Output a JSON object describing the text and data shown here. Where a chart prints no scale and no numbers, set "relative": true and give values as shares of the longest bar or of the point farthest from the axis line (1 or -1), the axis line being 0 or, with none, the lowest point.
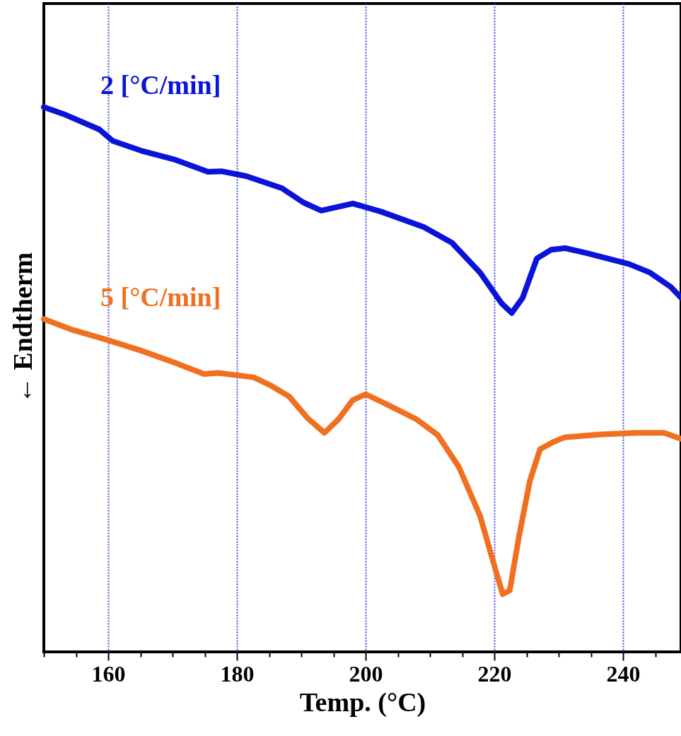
{
  "chart_data": {
    "type": "line",
    "relative": true,
    "xlabel": "Temp. (°C)",
    "ylabel": "← Endtherm",
    "xlim": [
      150,
      249
    ],
    "xticks": [
      {
        "value": 150,
        "label": null
      },
      {
        "value": 155,
        "label": null
      },
      160,
      {
        "value": 165,
        "label": null
      },
      {
        "value": 170,
        "label": null
      },
      {
        "value": 175,
        "label": null
      },
      180,
      {
        "value": 185,
        "label": null
      },
      {
        "value": 190,
        "label": null
      },
      {
        "value": 195,
        "label": null
      },
      200,
      {
        "value": 205,
        "label": null
      },
      {
        "value": 210,
        "label": null
      },
      {
        "value": 215,
        "label": null
      },
      220,
      {
        "value": 225,
        "label": null
      },
      {
        "value": 230,
        "label": null
      },
      {
        "value": 235,
        "label": null
      },
      240,
      {
        "value": 245,
        "label": null
      }
    ],
    "grid": "x",
    "line_style": "solid",
    "series": [
      {
        "name": "2 [°C/min]",
        "color": "#0a14d8",
        "x": [
          150,
          153.1,
          158.6,
          160.7,
          165.1,
          170.5,
          175.5,
          177.7,
          181.5,
          187,
          190.3,
          193.1,
          198,
          202.4,
          209,
          213.4,
          217.8,
          221.1,
          222.7,
          224.4,
          226.6,
          228.8,
          231,
          234.3,
          237.6,
          240.9,
          244.2,
          247.4,
          249
        ],
        "values": [
          1.0,
          0.987,
          0.959,
          0.938,
          0.92,
          0.903,
          0.881,
          0.882,
          0.873,
          0.851,
          0.825,
          0.81,
          0.823,
          0.808,
          0.78,
          0.751,
          0.696,
          0.64,
          0.622,
          0.65,
          0.722,
          0.738,
          0.741,
          0.732,
          0.722,
          0.712,
          0.696,
          0.67,
          0.65
        ]
      },
      {
        "name": "5 [°C/min]",
        "color": "#f07020",
        "x": [
          150,
          154.2,
          159.7,
          165.1,
          170.5,
          174.9,
          177.1,
          182.6,
          185.4,
          188.1,
          190.9,
          193.6,
          195.8,
          198,
          200,
          203.5,
          207.9,
          211.2,
          214.5,
          217.8,
          220,
          221.3,
          222.4,
          223.8,
          225.5,
          227.1,
          229.3,
          231,
          236.5,
          242,
          246.4,
          249
        ],
        "values": [
          0.611,
          0.592,
          0.573,
          0.553,
          0.53,
          0.51,
          0.512,
          0.504,
          0.488,
          0.469,
          0.43,
          0.402,
          0.427,
          0.462,
          0.473,
          0.453,
          0.427,
          0.398,
          0.339,
          0.249,
          0.158,
          0.106,
          0.113,
          0.21,
          0.313,
          0.372,
          0.386,
          0.394,
          0.399,
          0.402,
          0.402,
          0.391
        ]
      }
    ]
  }
}
